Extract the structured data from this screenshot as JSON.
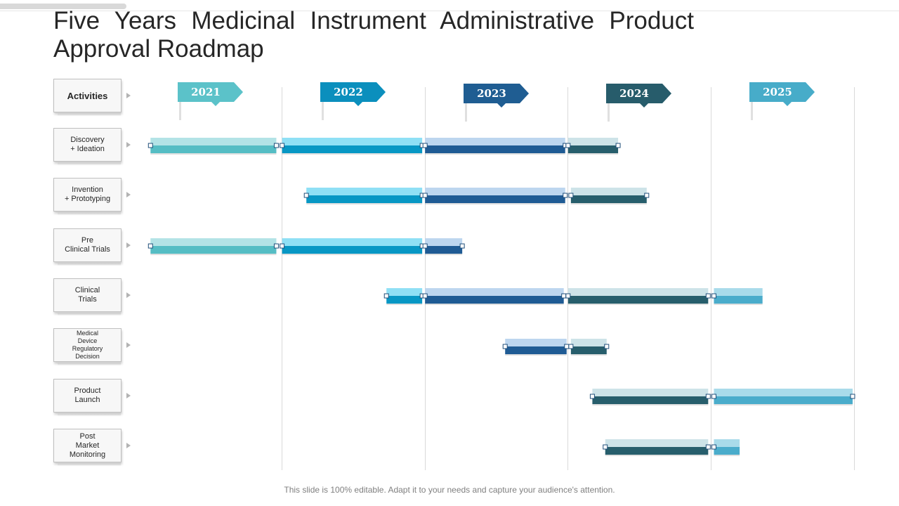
{
  "title": {
    "line1": "Five Years Medicinal Instrument Administrative Product",
    "line2": "Approval Roadmap"
  },
  "activities_header": "Activities",
  "activities": [
    "Discovery\n+ Ideation",
    "Invention\n+ Prototyping",
    "Pre\nClinical Trials",
    "Clinical\nTrials",
    "Medical\nDevice\nRegulatory\nDecision",
    "Product\nLaunch",
    "Post\nMarket\nMonitoring"
  ],
  "years": [
    {
      "label": "2021",
      "color": "#5bc2c9"
    },
    {
      "label": "2022",
      "color": "#0b8fbd"
    },
    {
      "label": "2023",
      "color": "#1f5d92"
    },
    {
      "label": "2024",
      "color": "#275c6b"
    },
    {
      "label": "2025",
      "color": "#47acc9"
    }
  ],
  "chart_data": {
    "type": "gantt",
    "time_unit": "year",
    "axis_start": 2021,
    "axis_end": 2026,
    "year_colors": {
      "2021": {
        "top": "#b3e3e6",
        "bottom": "#55bdc4"
      },
      "2022": {
        "top": "#8fe0f5",
        "bottom": "#0797c4"
      },
      "2023": {
        "top": "#bdd6ef",
        "bottom": "#1f5b94"
      },
      "2024": {
        "top": "#cde3e8",
        "bottom": "#275e6c"
      },
      "2025": {
        "top": "#a9dbea",
        "bottom": "#4aaccb"
      }
    },
    "rows": [
      {
        "activity": "Discovery + Ideation",
        "segments": [
          [
            2021.08,
            2021.96,
            "2021"
          ],
          [
            2022.0,
            2022.98,
            "2022"
          ],
          [
            2023.0,
            2023.98,
            "2023"
          ],
          [
            2024.0,
            2024.35,
            "2024"
          ]
        ]
      },
      {
        "activity": "Invention + Prototyping",
        "segments": [
          [
            2022.17,
            2022.98,
            "2022"
          ],
          [
            2023.0,
            2023.98,
            "2023"
          ],
          [
            2024.02,
            2024.55,
            "2024"
          ]
        ]
      },
      {
        "activity": "Pre Clinical Trials",
        "segments": [
          [
            2021.08,
            2021.96,
            "2021"
          ],
          [
            2022.0,
            2022.98,
            "2022"
          ],
          [
            2023.0,
            2023.26,
            "2023"
          ]
        ]
      },
      {
        "activity": "Clinical Trials",
        "segments": [
          [
            2022.73,
            2022.98,
            "2022"
          ],
          [
            2023.0,
            2023.97,
            "2023"
          ],
          [
            2024.0,
            2024.98,
            "2024"
          ],
          [
            2025.02,
            2025.36,
            "2025"
          ]
        ]
      },
      {
        "activity": "Medical Device Regulatory Decision",
        "segments": [
          [
            2023.56,
            2023.99,
            "2023"
          ],
          [
            2024.02,
            2024.27,
            "2024"
          ]
        ]
      },
      {
        "activity": "Product Launch",
        "segments": [
          [
            2024.17,
            2024.98,
            "2024"
          ],
          [
            2025.02,
            2025.99,
            "2025"
          ]
        ]
      },
      {
        "activity": "Post Market Monitoring",
        "segments": [
          [
            2024.26,
            2024.98,
            "2024"
          ],
          [
            2025.02,
            2025.2,
            "2025"
          ]
        ]
      }
    ]
  },
  "footer": "This slide is 100% editable. Adapt it to your needs and capture your audience's attention."
}
